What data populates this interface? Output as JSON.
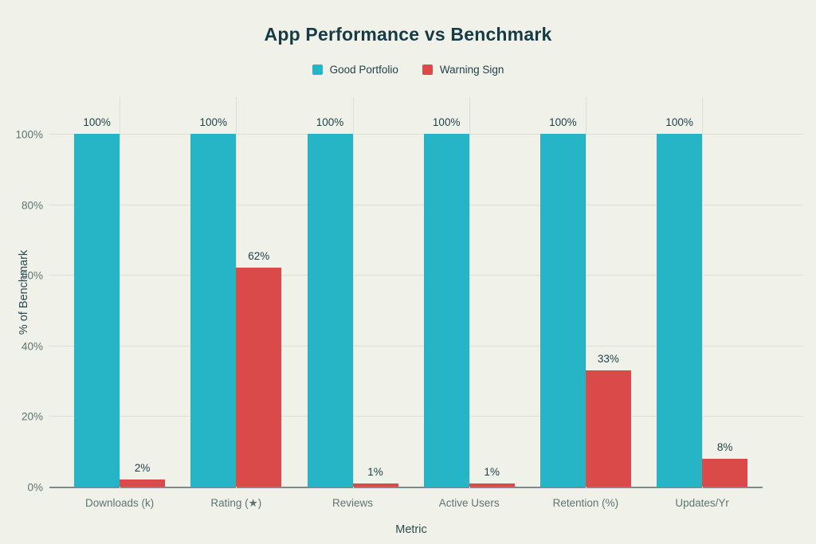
{
  "page": {
    "background": "#f0f1e9"
  },
  "colors": {
    "good_portfolio": "#25b5c7",
    "warning_sign": "#d94a49",
    "title_text": "#163b45",
    "axis_tick_text": "#5e7573",
    "axis_title_text": "#2c4a50",
    "gridline": "#dddfd5",
    "axis_line": "#808b89"
  },
  "chart_data": {
    "type": "bar",
    "title": "App Performance vs Benchmark",
    "categories": [
      "Downloads (k)",
      "Rating (★)",
      "Reviews",
      "Active Users",
      "Retention (%)",
      "Updates/Yr"
    ],
    "series": [
      {
        "name": "Good Portfolio",
        "color": "#25b5c7",
        "values": [
          100,
          100,
          100,
          100,
          100,
          100
        ],
        "labels": [
          "100%",
          "100%",
          "100%",
          "100%",
          "100%",
          "100%"
        ]
      },
      {
        "name": "Warning Sign",
        "color": "#d94a49",
        "values": [
          2,
          62,
          1,
          1,
          33,
          8
        ],
        "labels": [
          "2%",
          "62%",
          "1%",
          "1%",
          "33%",
          "8%"
        ]
      }
    ],
    "xlabel": "Metric",
    "ylabel": "% of Benchmark",
    "ylim": [
      0,
      100
    ],
    "yticks": [
      {
        "value": 0,
        "label": "0%"
      },
      {
        "value": 20,
        "label": "20%"
      },
      {
        "value": 40,
        "label": "40%"
      },
      {
        "value": 60,
        "label": "60%"
      },
      {
        "value": 80,
        "label": "80%"
      },
      {
        "value": 100,
        "label": "100%"
      }
    ],
    "grid": true,
    "legend_position": "top"
  }
}
